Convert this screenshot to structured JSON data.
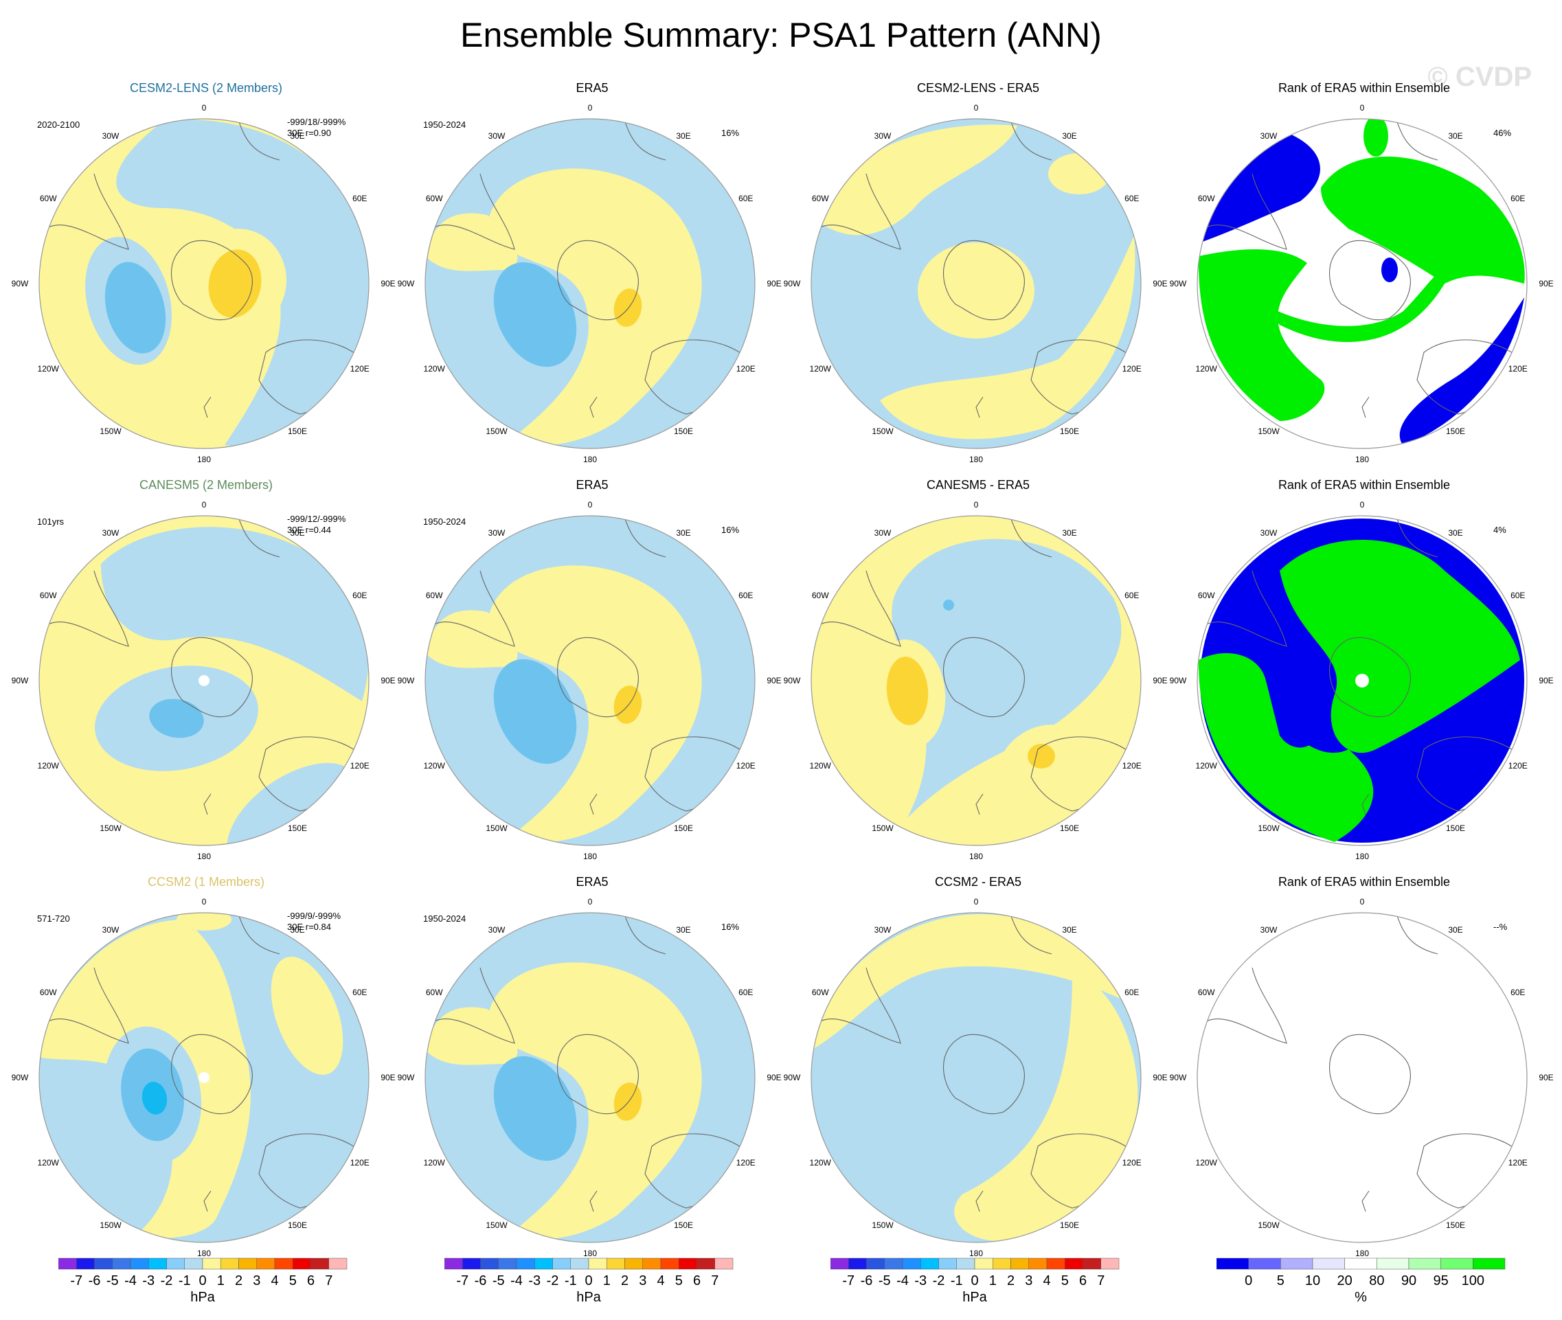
{
  "title": "Ensemble Summary: PSA1 Pattern (ANN)",
  "watermark": "© CVDP",
  "colors": {
    "light_blue": "#b3dcf0",
    "mid_blue": "#6ec3ee",
    "dark_blue": "#12b8ef",
    "light_yellow": "#fcf59a",
    "mid_yellow": "#fbd534",
    "orange": "#f8b400",
    "rank_blue": "#0000ee",
    "rank_green": "#00ee00",
    "white": "#ffffff"
  },
  "lon_labels": [
    "0",
    "30E",
    "60E",
    "90E",
    "120E",
    "150E",
    "180",
    "150W",
    "120W",
    "90W",
    "60W",
    "30W"
  ],
  "panels": [
    {
      "title": "CESM2-LENS (2 Members)",
      "title_color": "#1f6f9e",
      "left_text": "2020-2100",
      "stats": "-999/18/-999%",
      "corr": "30E  r=0.90",
      "right_text": "",
      "kind": "model"
    },
    {
      "title": "ERA5",
      "title_color": "#000000",
      "left_text": "1950-2024",
      "stats": "",
      "corr": "",
      "right_text": "16%",
      "kind": "obs"
    },
    {
      "title": "CESM2-LENS - ERA5",
      "title_color": "#000000",
      "left_text": "",
      "stats": "",
      "corr": "",
      "right_text": "",
      "kind": "diff"
    },
    {
      "title": "Rank of ERA5 within Ensemble",
      "title_color": "#000000",
      "left_text": "",
      "stats": "",
      "corr": "",
      "right_text": "46%",
      "kind": "rank"
    },
    {
      "title": "CANESM5 (2 Members)",
      "title_color": "#5c8a5c",
      "left_text": "101yrs",
      "stats": "-999/12/-999%",
      "corr": "30E  r=0.44",
      "right_text": "",
      "kind": "model"
    },
    {
      "title": "ERA5",
      "title_color": "#000000",
      "left_text": "1950-2024",
      "stats": "",
      "corr": "",
      "right_text": "16%",
      "kind": "obs"
    },
    {
      "title": "CANESM5 - ERA5",
      "title_color": "#000000",
      "left_text": "",
      "stats": "",
      "corr": "",
      "right_text": "",
      "kind": "diff"
    },
    {
      "title": "Rank of ERA5 within Ensemble",
      "title_color": "#000000",
      "left_text": "",
      "stats": "",
      "corr": "",
      "right_text": "4%",
      "kind": "rank"
    },
    {
      "title": "CCSM2 (1 Members)",
      "title_color": "#d9c36a",
      "left_text": "571-720",
      "stats": "-999/9/-999%",
      "corr": "30E  r=0.84",
      "right_text": "",
      "kind": "model"
    },
    {
      "title": "ERA5",
      "title_color": "#000000",
      "left_text": "1950-2024",
      "stats": "",
      "corr": "",
      "right_text": "16%",
      "kind": "obs"
    },
    {
      "title": "CCSM2 - ERA5",
      "title_color": "#000000",
      "left_text": "",
      "stats": "",
      "corr": "",
      "right_text": "",
      "kind": "diff"
    },
    {
      "title": "Rank of ERA5 within Ensemble",
      "title_color": "#000000",
      "left_text": "",
      "stats": "",
      "corr": "",
      "right_text": "--%",
      "kind": "rank_empty"
    }
  ],
  "colorbar_hpa": {
    "colors": [
      "#8a2be2",
      "#1a1aee",
      "#2a55e0",
      "#3a78ea",
      "#1e90ff",
      "#00bfff",
      "#87cefa",
      "#b3dcf0",
      "#fcf59a",
      "#fbd534",
      "#f8b400",
      "#ff8c00",
      "#ff4500",
      "#ee0000",
      "#c41e1e",
      "#ffb6b6"
    ],
    "labels": [
      "-7",
      "-6",
      "-5",
      "-4",
      "-3",
      "-2",
      "-1",
      "0",
      "1",
      "2",
      "3",
      "4",
      "5",
      "6",
      "7"
    ],
    "unit": "hPa"
  },
  "colorbar_rank": {
    "colors": [
      "#0000ee",
      "#6666ff",
      "#b0b0ff",
      "#e6e6ff",
      "#ffffff",
      "#e6ffe6",
      "#b0ffb0",
      "#70ff70",
      "#00ee00"
    ],
    "labels": [
      "0",
      "5",
      "10",
      "20",
      "80",
      "90",
      "95",
      "100"
    ],
    "unit": "%"
  },
  "chart_data": [
    {
      "type": "heatmap",
      "title": "CESM2-LENS (2 Members)",
      "period": "2020-2100",
      "units": "hPa",
      "pattern_correlation": 0.9,
      "levels": [
        -7,
        -6,
        -5,
        -4,
        -3,
        -2,
        -1,
        0,
        1,
        2,
        3,
        4,
        5,
        6,
        7
      ]
    },
    {
      "type": "heatmap",
      "title": "ERA5",
      "period": "1950-2024",
      "units": "hPa",
      "percent_variance": 16
    },
    {
      "type": "heatmap",
      "title": "CESM2-LENS - ERA5",
      "units": "hPa"
    },
    {
      "type": "heatmap",
      "title": "Rank of ERA5 within Ensemble",
      "units": "%",
      "value_percent": 46
    },
    {
      "type": "heatmap",
      "title": "CANESM5 (2 Members)",
      "period": "101yrs",
      "units": "hPa",
      "pattern_correlation": 0.44
    },
    {
      "type": "heatmap",
      "title": "ERA5",
      "period": "1950-2024",
      "units": "hPa",
      "percent_variance": 16
    },
    {
      "type": "heatmap",
      "title": "CANESM5 - ERA5",
      "units": "hPa"
    },
    {
      "type": "heatmap",
      "title": "Rank of ERA5 within Ensemble",
      "units": "%",
      "value_percent": 4
    },
    {
      "type": "heatmap",
      "title": "CCSM2 (1 Members)",
      "period": "571-720",
      "units": "hPa",
      "pattern_correlation": 0.84
    },
    {
      "type": "heatmap",
      "title": "ERA5",
      "period": "1950-2024",
      "units": "hPa",
      "percent_variance": 16
    },
    {
      "type": "heatmap",
      "title": "CCSM2 - ERA5",
      "units": "hPa"
    },
    {
      "type": "heatmap",
      "title": "Rank of ERA5 within Ensemble",
      "units": "%",
      "value_percent": null
    }
  ]
}
